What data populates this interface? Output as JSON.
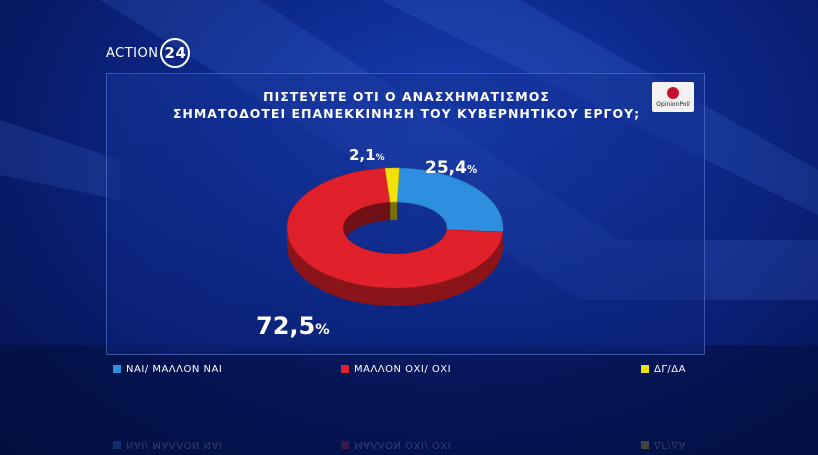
{
  "brand": {
    "name": "ACTION",
    "number": "24"
  },
  "pollster": "OpinionPoll",
  "chart_data": {
    "type": "pie",
    "title_lines": [
      "ΠΙΣΤΕΥΕΤΕ ΟΤΙ Ο ΑΝΑΣΧΗΜΑΤΙΣΜΟΣ",
      "ΣΗΜΑΤΟΔΟΤΕΙ ΕΠΑΝΕΚΚΙΝΗΣΗ ΤΟΥ ΚΥΒΕΡΝΗΤΙΚΟΥ ΕΡΓΟΥ;"
    ],
    "slices": [
      {
        "label": "ΝΑΙ/ ΜΑΛΛΟΝ ΝΑΙ",
        "value": 25.4,
        "value_text": "25,4",
        "color": "#2e8fe0"
      },
      {
        "label": "ΜΑΛΛΟΝ ΟΧΙ/ ΟΧΙ",
        "value": 72.5,
        "value_text": "72,5",
        "color": "#e0202a"
      },
      {
        "label": "ΔΓ/ΔΑ",
        "value": 2.1,
        "value_text": "2,1",
        "color": "#f2e20c"
      }
    ],
    "percent_sign": "%",
    "legend": "bottom"
  }
}
